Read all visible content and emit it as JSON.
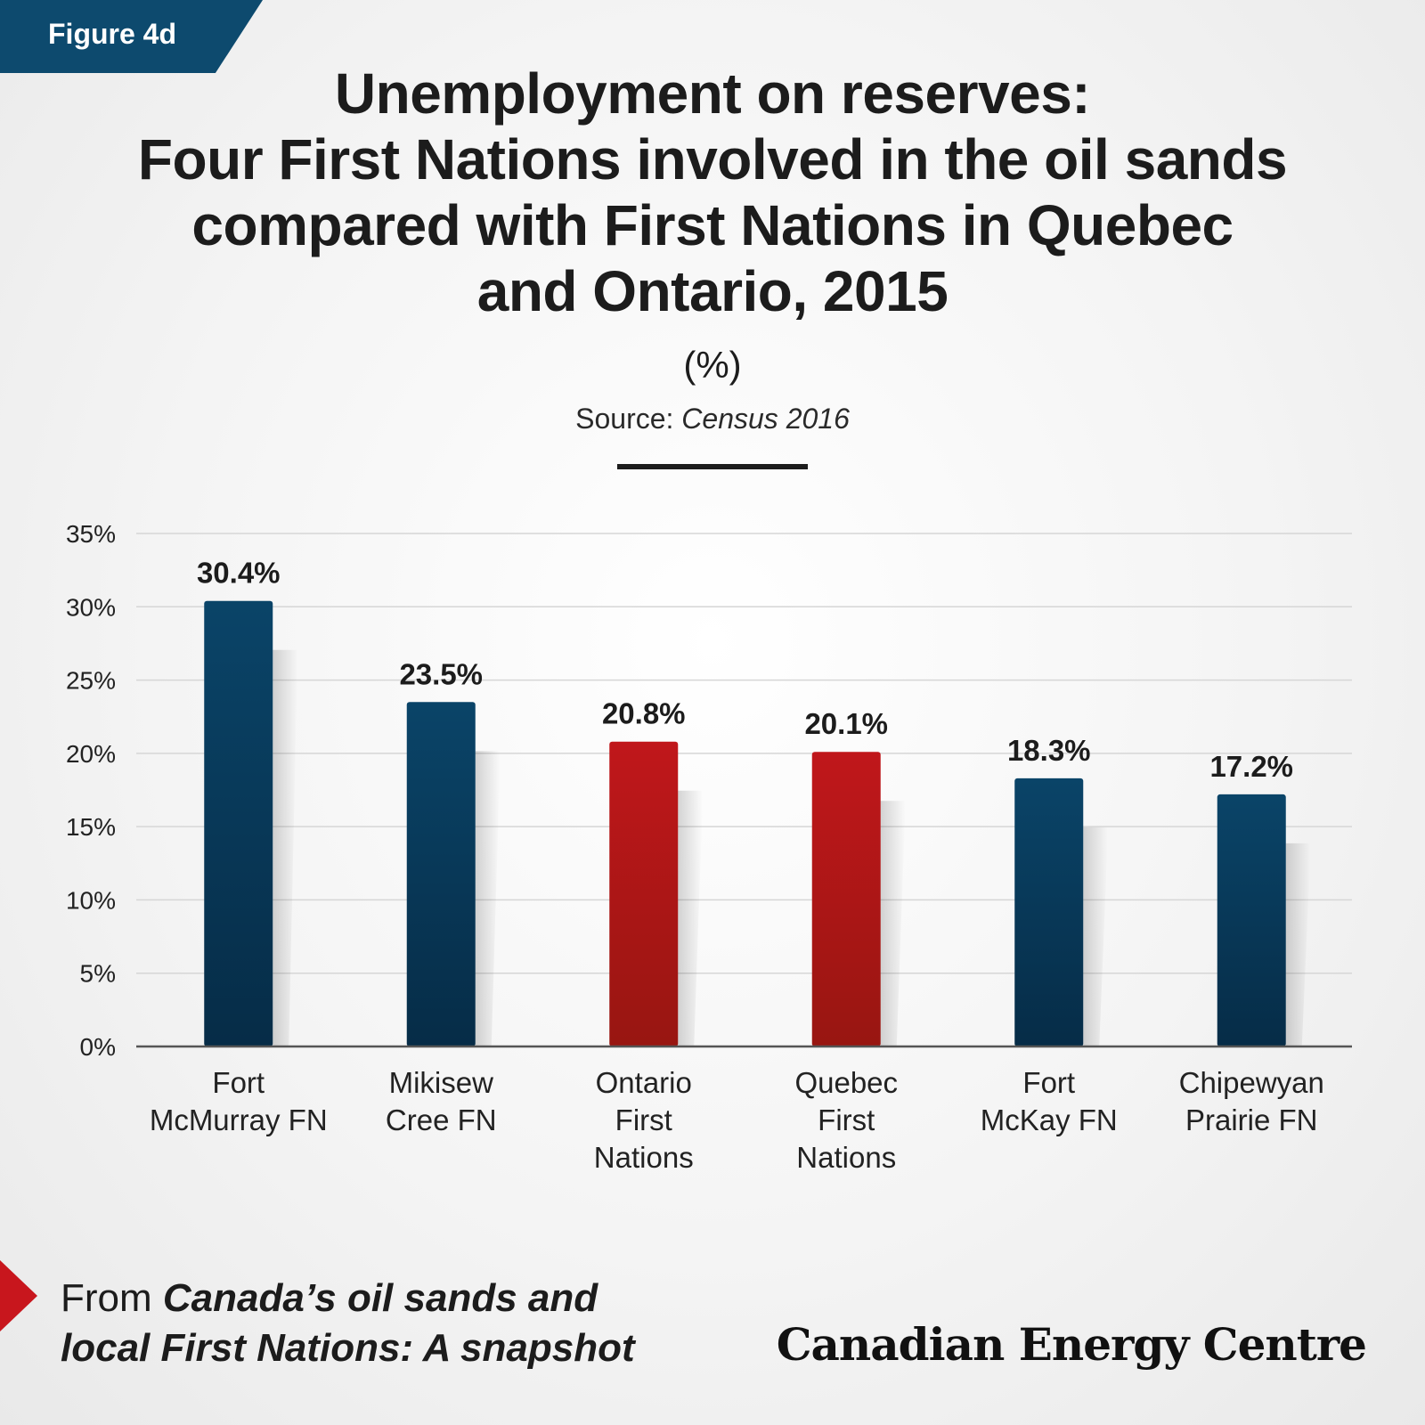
{
  "figure_label": "Figure 4d",
  "title_lines": [
    "Unemployment on reserves:",
    "Four First Nations involved in the oil sands",
    "compared with First Nations in Quebec",
    "and Ontario, 2015"
  ],
  "unit_label": "(%)",
  "source": {
    "prefix": "Source: ",
    "name": "Census 2016"
  },
  "footer": {
    "prefix": "From ",
    "line1_bold": "Canada’s oil sands and",
    "line2_bold": "local First Nations: A snapshot"
  },
  "brand": "Canadian Energy Centre",
  "colors": {
    "navy": "#0a4468",
    "red": "#c0171b",
    "accent": "#0d4a6e"
  },
  "chart_data": {
    "type": "bar",
    "categories": [
      [
        "Fort",
        "McMurray FN"
      ],
      [
        "Mikisew",
        "Cree FN"
      ],
      [
        "Ontario",
        "First",
        "Nations"
      ],
      [
        "Quebec",
        "First",
        "Nations"
      ],
      [
        "Fort",
        "McKay FN"
      ],
      [
        "Chipewyan",
        "Prairie FN"
      ]
    ],
    "values": [
      30.4,
      23.5,
      20.8,
      20.1,
      18.3,
      17.2
    ],
    "value_labels": [
      "30.4%",
      "23.5%",
      "20.8%",
      "20.1%",
      "18.3%",
      "17.2%"
    ],
    "bar_colors": [
      "navy",
      "navy",
      "red",
      "red",
      "navy",
      "navy"
    ],
    "ylim": [
      0,
      35
    ],
    "yticks": [
      0,
      5,
      10,
      15,
      20,
      25,
      30,
      35
    ],
    "ytick_labels": [
      "0%",
      "5%",
      "10%",
      "15%",
      "20%",
      "25%",
      "30%",
      "35%"
    ],
    "grid": true,
    "legend": "none"
  }
}
